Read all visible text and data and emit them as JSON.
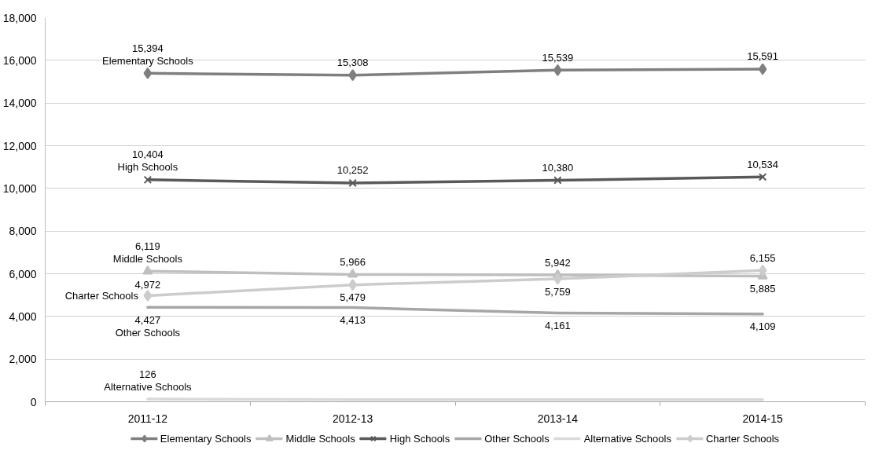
{
  "chart_data": {
    "type": "line",
    "categories": [
      "2011-12",
      "2012-13",
      "2013-14",
      "2014-15"
    ],
    "ylim": [
      0,
      18000
    ],
    "yticks": [
      0,
      {
        "value": 2000,
        "label": "2,000"
      },
      {
        "value": 4000,
        "label": "4,000"
      },
      {
        "value": 6000,
        "label": "6,000"
      },
      {
        "value": 8000,
        "label": "8,000"
      },
      {
        "value": 10000,
        "label": "10,000"
      },
      {
        "value": 12000,
        "label": "12,000"
      },
      {
        "value": 14000,
        "label": "14,000"
      },
      {
        "value": 16000,
        "label": "16,000"
      },
      {
        "value": 18000,
        "label": "18,000"
      }
    ],
    "grid": "y",
    "legend": "bottom",
    "line_style": "solid",
    "series": [
      {
        "name": "Elementary Schools",
        "color": "#7f7f7f",
        "marker": "diamond",
        "values": [
          15394,
          15308,
          15539,
          15591
        ],
        "value_labels": [
          "15,394",
          "15,308",
          "15,539",
          "15,591"
        ]
      },
      {
        "name": "Middle Schools",
        "color": "#bfbfbf",
        "marker": "triangle",
        "values": [
          6119,
          5966,
          5942,
          5885
        ],
        "value_labels": [
          "6,119",
          "5,966",
          "5,942",
          "5,885"
        ]
      },
      {
        "name": "High Schools",
        "color": "#595959",
        "marker": "cross",
        "values": [
          10404,
          10252,
          10380,
          10534
        ],
        "value_labels": [
          "10,404",
          "10,252",
          "10,380",
          "10,534"
        ]
      },
      {
        "name": "Other Schools",
        "color": "#a6a6a6",
        "marker": "none",
        "values": [
          4427,
          4413,
          4161,
          4109
        ],
        "value_labels": [
          "4,427",
          "4,413",
          "4,161",
          "4,109"
        ]
      },
      {
        "name": "Alternative Schools",
        "color": "#d9d9d9",
        "marker": "none",
        "values": [
          126,
          100,
          100,
          100
        ],
        "value_labels": [
          "126",
          null,
          null,
          null
        ]
      },
      {
        "name": "Charter Schools",
        "color": "#cccccc",
        "marker": "diamond",
        "values": [
          4972,
          5479,
          5759,
          6155
        ],
        "value_labels": [
          "4,972",
          "5,479",
          "5,759",
          "6,155"
        ]
      }
    ]
  }
}
